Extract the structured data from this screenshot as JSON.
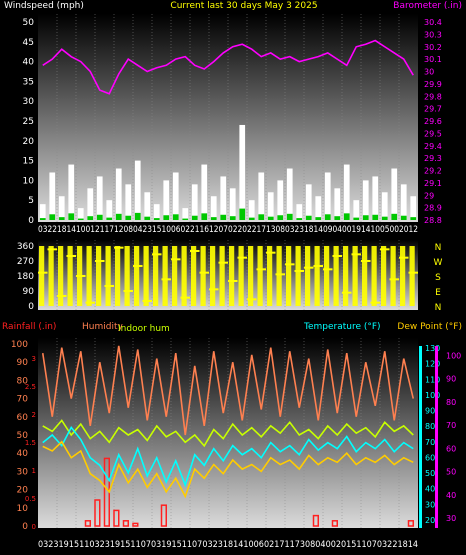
{
  "header": {
    "left_title": "Windspeed (mph)",
    "center_title": "Current last 30 days May 3 2025",
    "right_title": "Barometer (.in)"
  },
  "colors": {
    "background": "#000000",
    "axis_text": "#ffffff",
    "title_yellow": "#ffff00",
    "barometer": "#ff00ff",
    "wind_gust": "#ffffff",
    "wind_avg": "#00c800",
    "direction": "#ffff00",
    "rainfall": "#ff2020",
    "humidity": "#ff8050",
    "indoor_hum": "#c8ff00",
    "temperature": "#00ffff",
    "dew_point": "#ffcc00",
    "outdoor_temp": "#ff00ff",
    "indoor_temp": "#80ff20"
  },
  "wind_panel": {
    "y_ticks": [
      "0",
      "5",
      "10",
      "15",
      "20",
      "25",
      "30",
      "35",
      "40",
      "45",
      "50"
    ],
    "baro_ticks": [
      "28.8",
      "28.9",
      "29",
      "29.1",
      "29.2",
      "29.3",
      "29.4",
      "29.5",
      "29.6",
      "29.7",
      "29.8",
      "29.9",
      "30",
      "30.1",
      "30.2",
      "30.3",
      "30.4"
    ],
    "x_labels": "03221814100121171208042315100602211612070220221713080323181409040019141005002012"
  },
  "direction_panel": {
    "y_ticks": [
      "360",
      "270",
      "180",
      "90",
      "0"
    ],
    "compass": [
      "N",
      "W",
      "S",
      "E",
      "N"
    ]
  },
  "climate_panel": {
    "label_rainfall": "Rainfall (.in)",
    "label_humidity": "Humidity",
    "label_indoor_hum": "Indoor hum",
    "label_temperature": "Temperature (°F)",
    "label_dewpoint": "Dew Point (°F)",
    "humidity_ticks": [
      "0",
      "10",
      "20",
      "30",
      "40",
      "50",
      "60",
      "70",
      "80",
      "90",
      "100"
    ],
    "rain_ticks": [
      "0",
      "0.5",
      "1",
      "1.5",
      "2",
      "2.5",
      "3"
    ],
    "temp_ticks": [
      "20",
      "30",
      "40",
      "50",
      "60",
      "70",
      "80",
      "90",
      "100",
      "110",
      "120",
      "130"
    ],
    "dew_ticks": [
      "30",
      "40",
      "50",
      "60",
      "70",
      "80",
      "90",
      "100"
    ],
    "x_labels": "03231915110323191511070319151107032318141006021711730804002015110703221814"
  },
  "chart_data": [
    {
      "type": "line",
      "title": "Current last 30 days May 3 2025",
      "series": [
        {
          "name": "Windspeed (mph)",
          "axis": "left",
          "ylim": [
            0,
            50
          ],
          "values": [
            4,
            12,
            6,
            14,
            3,
            8,
            11,
            5,
            13,
            9,
            15,
            7,
            4,
            10,
            12,
            3,
            9,
            14,
            6,
            11,
            8,
            24,
            5,
            12,
            7,
            10,
            13,
            4,
            9,
            6,
            12,
            8,
            14,
            5,
            10,
            11,
            7,
            13,
            9,
            6
          ]
        },
        {
          "name": "Barometer (.in)",
          "axis": "right",
          "ylim": [
            28.8,
            30.4
          ],
          "values": [
            30.05,
            30.1,
            30.18,
            30.12,
            30.08,
            30.0,
            29.85,
            29.82,
            29.98,
            30.1,
            30.05,
            30.0,
            30.03,
            30.05,
            30.1,
            30.12,
            30.05,
            30.02,
            30.08,
            30.15,
            30.2,
            30.22,
            30.18,
            30.12,
            30.15,
            30.1,
            30.12,
            30.08,
            30.1,
            30.12,
            30.15,
            30.1,
            30.05,
            30.2,
            30.22,
            30.25,
            30.2,
            30.15,
            30.1,
            29.97
          ]
        }
      ]
    },
    {
      "type": "line",
      "title": "Wind Direction",
      "ylim": [
        0,
        360
      ],
      "series": [
        {
          "name": "Direction",
          "values": [
            200,
            340,
            60,
            300,
            180,
            20,
            270,
            120,
            350,
            90,
            240,
            30,
            310,
            160,
            280,
            50,
            330,
            200,
            100,
            260,
            150,
            290,
            40,
            220,
            320,
            190,
            250,
            210,
            230,
            240,
            220,
            300,
            80,
            310,
            270,
            20,
            340,
            160,
            290,
            200
          ]
        }
      ]
    },
    {
      "type": "line",
      "series": [
        {
          "name": "Rainfall (.in)",
          "axis": "rain",
          "ylim": [
            0,
            3.5
          ],
          "values": [
            0,
            0,
            0,
            0,
            0,
            0.1,
            0.5,
            1.3,
            0.3,
            0.1,
            0.05,
            0,
            0,
            0.4,
            0,
            0,
            0,
            0,
            0,
            0,
            0,
            0,
            0,
            0,
            0,
            0,
            0,
            0,
            0,
            0.2,
            0,
            0.1,
            0,
            0,
            0,
            0,
            0,
            0,
            0,
            0.1
          ]
        },
        {
          "name": "Humidity",
          "axis": "humidity",
          "ylim": [
            0,
            100
          ],
          "values": [
            95,
            60,
            98,
            70,
            96,
            55,
            90,
            62,
            99,
            65,
            97,
            58,
            92,
            60,
            95,
            50,
            88,
            55,
            96,
            62,
            90,
            58,
            94,
            64,
            98,
            60,
            96,
            65,
            92,
            58,
            97,
            62,
            95,
            60,
            90,
            66,
            96,
            58,
            92,
            70
          ]
        },
        {
          "name": "Indoor hum",
          "axis": "humidity",
          "ylim": [
            0,
            100
          ],
          "values": [
            55,
            52,
            58,
            50,
            56,
            48,
            52,
            46,
            54,
            50,
            53,
            47,
            55,
            49,
            52,
            46,
            50,
            44,
            53,
            48,
            56,
            50,
            54,
            49,
            55,
            51,
            57,
            50,
            53,
            48,
            55,
            50,
            56,
            51,
            54,
            49,
            57,
            52,
            55,
            50
          ]
        },
        {
          "name": "Temperature (°F)",
          "axis": "temp",
          "ylim": [
            15,
            135
          ],
          "values": [
            70,
            75,
            68,
            80,
            72,
            60,
            55,
            45,
            62,
            50,
            66,
            48,
            60,
            44,
            58,
            42,
            62,
            55,
            66,
            58,
            68,
            62,
            66,
            60,
            70,
            64,
            68,
            62,
            72,
            65,
            70,
            66,
            74,
            64,
            70,
            66,
            72,
            64,
            70,
            66
          ]
        },
        {
          "name": "Dew Point (°F)",
          "axis": "dew",
          "ylim": [
            25,
            105
          ],
          "values": [
            60,
            58,
            62,
            55,
            58,
            48,
            45,
            40,
            52,
            44,
            50,
            42,
            48,
            40,
            46,
            38,
            50,
            46,
            52,
            48,
            54,
            50,
            52,
            49,
            55,
            52,
            54,
            50,
            56,
            52,
            55,
            53,
            57,
            52,
            55,
            53,
            56,
            52,
            55,
            53
          ]
        }
      ]
    }
  ]
}
